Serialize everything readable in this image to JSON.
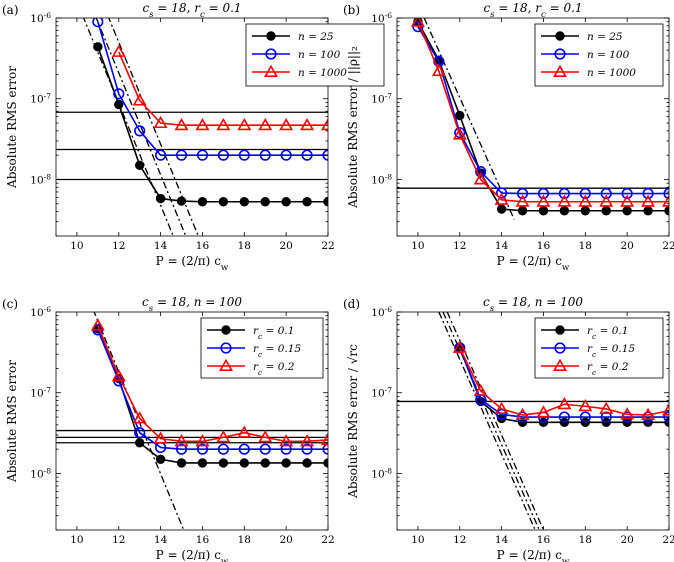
{
  "chart_data": [
    {
      "panel": "(a)",
      "type": "line",
      "title": "c_s = 18, r_c = 0.1",
      "xlabel": "P = (2/π) c_w",
      "ylabel": "Absolute RMS error",
      "xlim": [
        9,
        22
      ],
      "ylim_log10": [
        -8.7,
        -6
      ],
      "xticks": [
        "10",
        "12",
        "14",
        "16",
        "18",
        "20",
        "22"
      ],
      "yticks": [
        {
          "label": "10^-8",
          "exp": -8
        },
        {
          "label": "10^-7",
          "exp": -7
        },
        {
          "label": "10^-6",
          "exp": -6
        }
      ],
      "legend_position": "top-right",
      "series": [
        {
          "name": "n = 25",
          "color": "#000000",
          "marker": "dot",
          "x": [
            11,
            12,
            13,
            14,
            15,
            16,
            17,
            18,
            19,
            20,
            21,
            22
          ],
          "y": [
            4.4e-07,
            8.5e-08,
            1.5e-08,
            5.8e-09,
            5.4e-09,
            5.3e-09,
            5.3e-09,
            5.3e-09,
            5.3e-09,
            5.3e-09,
            5.3e-09,
            5.3e-09
          ]
        },
        {
          "name": "n = 100",
          "color": "#0000ff",
          "marker": "circle",
          "x": [
            11,
            12,
            13,
            14,
            15,
            16,
            17,
            18,
            19,
            20,
            21,
            22
          ],
          "y": [
            9e-07,
            1.15e-07,
            4e-08,
            2e-08,
            2e-08,
            2e-08,
            2e-08,
            2e-08,
            2e-08,
            2e-08,
            2e-08,
            2e-08
          ]
        },
        {
          "name": "n = 1000",
          "color": "#ff0000",
          "marker": "triangle",
          "x": [
            12,
            13,
            14,
            15,
            16,
            17,
            18,
            19,
            20,
            21,
            22
          ],
          "y": [
            3.8e-07,
            9.5e-08,
            5e-08,
            4.7e-08,
            4.7e-08,
            4.7e-08,
            4.7e-08,
            4.7e-08,
            4.7e-08,
            4.7e-08,
            4.7e-08
          ]
        }
      ],
      "hlines": [
        1e-08,
        2.35e-08,
        6.8e-08
      ],
      "dashdot_lines": [
        {
          "x": [
            10.0,
            14.6
          ],
          "y": [
            1.6e-06,
            2e-09
          ]
        },
        {
          "x": [
            10.6,
            15.2
          ],
          "y": [
            1.6e-06,
            2e-09
          ]
        },
        {
          "x": [
            11.2,
            15.8
          ],
          "y": [
            1.6e-06,
            2e-09
          ]
        }
      ],
      "grid": false
    },
    {
      "panel": "(b)",
      "type": "line",
      "title": "c_s = 18, r_c = 0.1",
      "xlabel": "P = (2/π) c_w",
      "ylabel": "Absolute RMS error / ||ρ||₂",
      "xlim": [
        9,
        22
      ],
      "ylim_log10": [
        -8.7,
        -6
      ],
      "xticks": [
        "10",
        "12",
        "14",
        "16",
        "18",
        "20",
        "22"
      ],
      "yticks": [
        {
          "label": "10^-8",
          "exp": -8
        },
        {
          "label": "10^-7",
          "exp": -7
        },
        {
          "label": "10^-6",
          "exp": -6
        }
      ],
      "legend_position": "top-right",
      "series": [
        {
          "name": "n = 25",
          "color": "#000000",
          "marker": "dot",
          "x": [
            10,
            11,
            12,
            13,
            14,
            15,
            16,
            17,
            18,
            19,
            20,
            21,
            22
          ],
          "y": [
            9e-07,
            3e-07,
            6.2e-08,
            1.2e-08,
            4.3e-09,
            4.1e-09,
            4.1e-09,
            4.1e-09,
            4.1e-09,
            4.1e-09,
            4.1e-09,
            4.1e-09,
            4.1e-09
          ]
        },
        {
          "name": "n = 100",
          "color": "#0000ff",
          "marker": "circle",
          "x": [
            10,
            11,
            12,
            13,
            14,
            15,
            16,
            17,
            18,
            19,
            20,
            21,
            22
          ],
          "y": [
            7.8e-07,
            2.9e-07,
            3.8e-08,
            1.25e-08,
            6.8e-09,
            6.7e-09,
            6.7e-09,
            6.7e-09,
            6.7e-09,
            6.7e-09,
            6.7e-09,
            6.7e-09,
            6.7e-09
          ]
        },
        {
          "name": "n = 1000",
          "color": "#ff0000",
          "marker": "triangle",
          "x": [
            10,
            11,
            12,
            13,
            14,
            15,
            16,
            17,
            18,
            19,
            20,
            21,
            22
          ],
          "y": [
            9e-07,
            2.2e-07,
            3.6e-08,
            1e-08,
            5.6e-09,
            5.3e-09,
            5.3e-09,
            5.3e-09,
            5.3e-09,
            5.3e-09,
            5.3e-09,
            5.3e-09,
            5.3e-09
          ]
        }
      ],
      "hlines": [
        7.8e-09
      ],
      "dashdot_lines": [
        {
          "x": [
            10.3,
            14.6
          ],
          "y": [
            1e-06,
            3.2e-09
          ]
        }
      ],
      "grid": false
    },
    {
      "panel": "(c)",
      "type": "line",
      "title": "c_s = 18, n = 100",
      "xlabel": "P = (2/π) c_w",
      "ylabel": "Absolute RMS error",
      "xlim": [
        9,
        22
      ],
      "ylim_log10": [
        -8.7,
        -6
      ],
      "xticks": [
        "10",
        "12",
        "14",
        "16",
        "18",
        "20",
        "22"
      ],
      "yticks": [
        {
          "label": "10^-8",
          "exp": -8
        },
        {
          "label": "10^-7",
          "exp": -7
        },
        {
          "label": "10^-6",
          "exp": -6
        }
      ],
      "legend_position": "top-right",
      "series": [
        {
          "name": "r_c = 0.1",
          "color": "#000000",
          "marker": "dot",
          "x": [
            11,
            12,
            13,
            14,
            15,
            16,
            17,
            18,
            19,
            20,
            21,
            22
          ],
          "y": [
            6.2e-07,
            1.5e-07,
            2.4e-08,
            1.5e-08,
            1.35e-08,
            1.35e-08,
            1.35e-08,
            1.35e-08,
            1.35e-08,
            1.35e-08,
            1.35e-08,
            1.35e-08
          ]
        },
        {
          "name": "r_c = 0.15",
          "color": "#0000ff",
          "marker": "circle",
          "x": [
            11,
            12,
            13,
            14,
            15,
            16,
            17,
            18,
            19,
            20,
            21,
            22
          ],
          "y": [
            6e-07,
            1.4e-07,
            3.2e-08,
            2.1e-08,
            2e-08,
            2e-08,
            2e-08,
            2e-08,
            2e-08,
            2e-08,
            2e-08,
            2e-08
          ]
        },
        {
          "name": "r_c = 0.2",
          "color": "#ff0000",
          "marker": "triangle",
          "x": [
            11,
            12,
            13,
            14,
            15,
            16,
            17,
            18,
            19,
            20,
            21,
            22
          ],
          "y": [
            6.8e-07,
            1.6e-07,
            4.8e-08,
            2.7e-08,
            2.5e-08,
            2.5e-08,
            2.8e-08,
            3.2e-08,
            2.8e-08,
            2.5e-08,
            2.5e-08,
            2.6e-08
          ]
        }
      ],
      "hlines": [
        2.4e-08,
        2.8e-08,
        3.4e-08
      ],
      "dashdot_lines": [
        {
          "x": [
            10.5,
            15.1
          ],
          "y": [
            1.6e-06,
            2e-09
          ]
        }
      ],
      "grid": false
    },
    {
      "panel": "(d)",
      "type": "line",
      "title": "c_s = 18, n = 100",
      "xlabel": "P = (2/π) c_w",
      "ylabel": "Absolute RMS error / √r_c",
      "xlim": [
        9,
        22
      ],
      "ylim_log10": [
        -8.7,
        -6
      ],
      "xticks": [
        "10",
        "12",
        "14",
        "16",
        "18",
        "20",
        "22"
      ],
      "yticks": [
        {
          "label": "10^-8",
          "exp": -8
        },
        {
          "label": "10^-7",
          "exp": -7
        },
        {
          "label": "10^-6",
          "exp": -6
        }
      ],
      "legend_position": "top-right",
      "series": [
        {
          "name": "r_c = 0.1",
          "color": "#000000",
          "marker": "dot",
          "x": [
            12,
            13,
            14,
            15,
            16,
            17,
            18,
            19,
            20,
            21,
            22
          ],
          "y": [
            3.6e-07,
            7.8e-08,
            4.8e-08,
            4.3e-08,
            4.3e-08,
            4.3e-08,
            4.3e-08,
            4.3e-08,
            4.3e-08,
            4.3e-08,
            4.3e-08
          ]
        },
        {
          "name": "r_c = 0.15",
          "color": "#0000ff",
          "marker": "circle",
          "x": [
            12,
            13,
            14,
            15,
            16,
            17,
            18,
            19,
            20,
            21,
            22
          ],
          "y": [
            3.6e-07,
            8.2e-08,
            5.4e-08,
            5e-08,
            5e-08,
            5e-08,
            5e-08,
            5e-08,
            5e-08,
            5e-08,
            5e-08
          ]
        },
        {
          "name": "r_c = 0.2",
          "color": "#ff0000",
          "marker": "triangle",
          "x": [
            12,
            13,
            14,
            15,
            16,
            17,
            18,
            19,
            20,
            21,
            22
          ],
          "y": [
            3.6e-07,
            1.05e-07,
            6.3e-08,
            5.3e-08,
            5.7e-08,
            7.2e-08,
            6.8e-08,
            6.3e-08,
            5.4e-08,
            5.3e-08,
            6e-08
          ]
        }
      ],
      "hlines": [
        7.8e-08
      ],
      "dashdot_lines": [
        {
          "x": [
            11.0,
            15.6
          ],
          "y": [
            1e-06,
            2e-09
          ]
        },
        {
          "x": [
            11.2,
            15.8
          ],
          "y": [
            1e-06,
            2e-09
          ]
        },
        {
          "x": [
            11.4,
            16.0
          ],
          "y": [
            1e-06,
            2e-09
          ]
        }
      ],
      "grid": false
    }
  ]
}
